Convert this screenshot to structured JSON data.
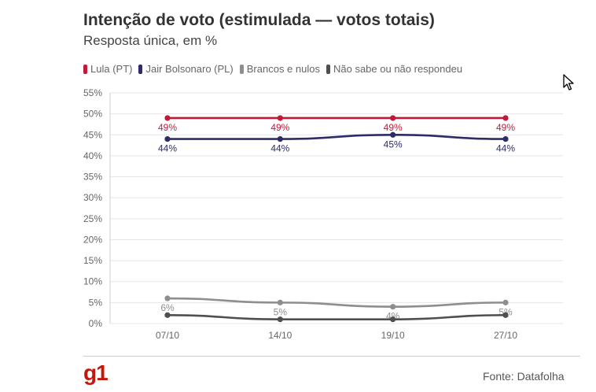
{
  "title": "Intenção de voto (estimulada — votos totais)",
  "subtitle": "Resposta única, em %",
  "source": "Fonte: Datafolha",
  "logo": "g1",
  "cursor_icon": "arrow-cursor",
  "chart_data": {
    "type": "line",
    "categories": [
      "07/10",
      "14/10",
      "19/10",
      "27/10"
    ],
    "ylim": [
      0,
      55
    ],
    "yticks": [
      0,
      5,
      10,
      15,
      20,
      25,
      30,
      35,
      40,
      45,
      50,
      55
    ],
    "ytick_labels": [
      "0%",
      "5%",
      "10%",
      "15%",
      "20%",
      "25%",
      "30%",
      "35%",
      "40%",
      "45%",
      "50%",
      "55%"
    ],
    "grid": true,
    "legend_position": "top-left",
    "series": [
      {
        "name": "Lula (PT)",
        "color": "#c11a38",
        "values": [
          49,
          49,
          49,
          49
        ],
        "labels": [
          "49%",
          "49%",
          "49%",
          "49%"
        ],
        "label_position": "below"
      },
      {
        "name": "Jair Bolsonaro (PL)",
        "color": "#2e2c67",
        "values": [
          44,
          44,
          45,
          44
        ],
        "labels": [
          "44%",
          "44%",
          "45%",
          "44%"
        ],
        "label_position": "below"
      },
      {
        "name": "Brancos e nulos",
        "color": "#8e8e8e",
        "values": [
          6,
          5,
          4,
          5
        ],
        "labels": [
          "6%",
          "5%",
          "4%",
          "5%"
        ],
        "label_position": "below"
      },
      {
        "name": "Não sabe ou não respondeu",
        "color": "#4f4f4f",
        "values": [
          2,
          1,
          1,
          2
        ],
        "labels": [],
        "label_position": "none"
      }
    ]
  }
}
